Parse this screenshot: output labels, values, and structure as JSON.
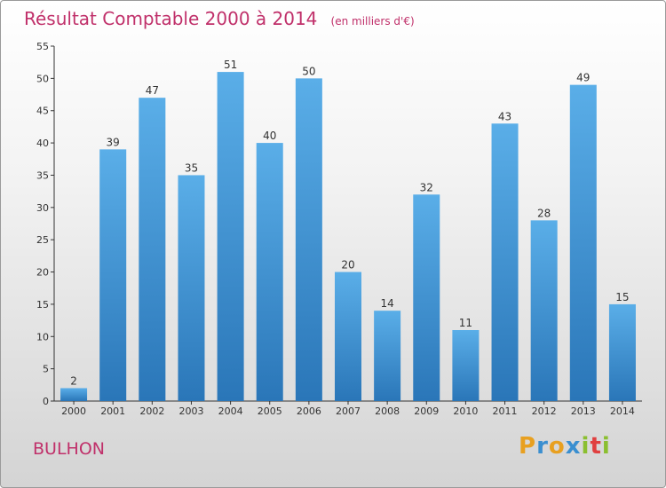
{
  "header": {
    "title": "Résultat Comptable 2000 à 2014",
    "subtitle": "(en milliers d'€)"
  },
  "commune": "BULHON",
  "logo": {
    "letters": [
      "P",
      "r",
      "o",
      "x",
      "i",
      "t",
      "i"
    ],
    "colors": [
      "#e8a020",
      "#3a8fd0",
      "#e8a020",
      "#3a8fd0",
      "#8bbf30",
      "#e04040",
      "#8bbf30"
    ]
  },
  "colors": {
    "title": "#c0306a",
    "bar_top": "#5aaee8",
    "bar_bottom": "#2a76b8",
    "axis": "#333333"
  },
  "chart_data": {
    "type": "bar",
    "title": "Résultat Comptable 2000 à 2014",
    "subtitle": "(en milliers d'€)",
    "categories": [
      "2000",
      "2001",
      "2002",
      "2003",
      "2004",
      "2005",
      "2006",
      "2007",
      "2008",
      "2009",
      "2010",
      "2011",
      "2012",
      "2013",
      "2014"
    ],
    "values": [
      2,
      39,
      47,
      35,
      51,
      40,
      50,
      20,
      14,
      32,
      11,
      43,
      28,
      49,
      15
    ],
    "ylim": [
      0,
      55
    ],
    "yticks": [
      0,
      5,
      10,
      15,
      20,
      25,
      30,
      35,
      40,
      45,
      50,
      55
    ],
    "xlabel": "",
    "ylabel": "",
    "grid": false,
    "legend": "none",
    "data_labels": true
  }
}
